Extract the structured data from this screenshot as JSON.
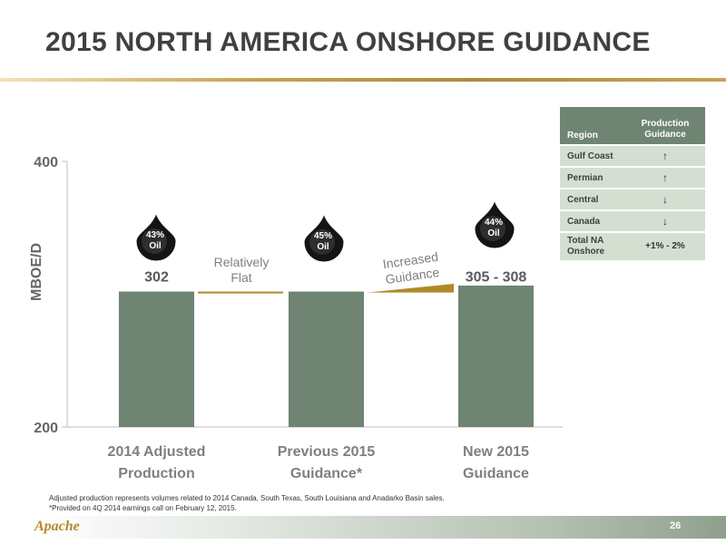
{
  "title": "2015 NORTH AMERICA ONSHORE GUIDANCE",
  "chart_data": {
    "type": "bar",
    "ylabel": "MBOE/D",
    "ylim": [
      200,
      400
    ],
    "yticks": [
      200,
      400
    ],
    "categories": [
      [
        "2014 Adjusted",
        "Production"
      ],
      [
        "Previous 2015",
        "Guidance*"
      ],
      [
        "New 2015",
        "Guidance"
      ]
    ],
    "values": [
      302,
      302,
      306.5
    ],
    "value_labels": [
      "302",
      "",
      "305 - 308"
    ],
    "oil_share": [
      [
        "43%",
        "Oil"
      ],
      [
        "45%",
        "Oil"
      ],
      [
        "44%",
        "Oil"
      ]
    ],
    "annotations": [
      [
        "Relatively",
        "Flat"
      ],
      [
        "Increased",
        "Guidance"
      ]
    ],
    "bar_color": "#6f8472",
    "connector_color": "#b08a2a"
  },
  "table": {
    "headers": [
      "Region",
      [
        "Production",
        "Guidance"
      ]
    ],
    "rows": [
      {
        "region": "Gulf Coast",
        "guidance": "↑"
      },
      {
        "region": "Permian",
        "guidance": "↑"
      },
      {
        "region": "Central",
        "guidance": "↓"
      },
      {
        "region": "Canada",
        "guidance": "↓"
      }
    ],
    "total": {
      "region": [
        "Total NA",
        "Onshore"
      ],
      "guidance": "+1% - 2%"
    }
  },
  "footnotes": [
    "Adjusted production represents volumes related to 2014 Canada, South Texas, South Louisiana and Anadarko Basin sales.",
    "*Provided on 4Q 2014 earnings call on February 12, 2015."
  ],
  "logo": "Apache",
  "page_number": "26"
}
